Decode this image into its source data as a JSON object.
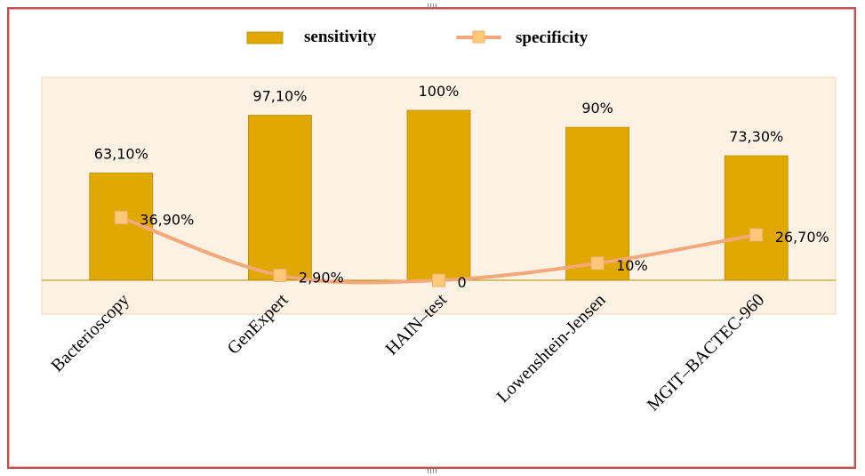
{
  "chart_data": {
    "type": "bar",
    "categories": [
      "Bacterioscopy",
      "GenExpert",
      "HAIN–test",
      "Lowenshtein-Jensen",
      "MGIT–BACTEC-960"
    ],
    "series": [
      {
        "name": "sensitivity",
        "type": "bar",
        "color": "#e0a800",
        "values": [
          63.1,
          97.1,
          100,
          90,
          73.3
        ],
        "labels": [
          "63,10%",
          "97,10%",
          "100%",
          "90%",
          "73,30%"
        ]
      },
      {
        "name": "specificity",
        "type": "line",
        "color": "#f2a878",
        "marker_color": "#ffc878",
        "values": [
          36.9,
          2.9,
          0,
          10,
          26.7
        ],
        "labels": [
          "36,90%",
          "2,90%",
          "0",
          "10%",
          "26,70%"
        ]
      }
    ],
    "ylim": [
      -20,
      110
    ],
    "grid": false,
    "legend_position": "top",
    "plot_background": "#fdf1e4"
  }
}
